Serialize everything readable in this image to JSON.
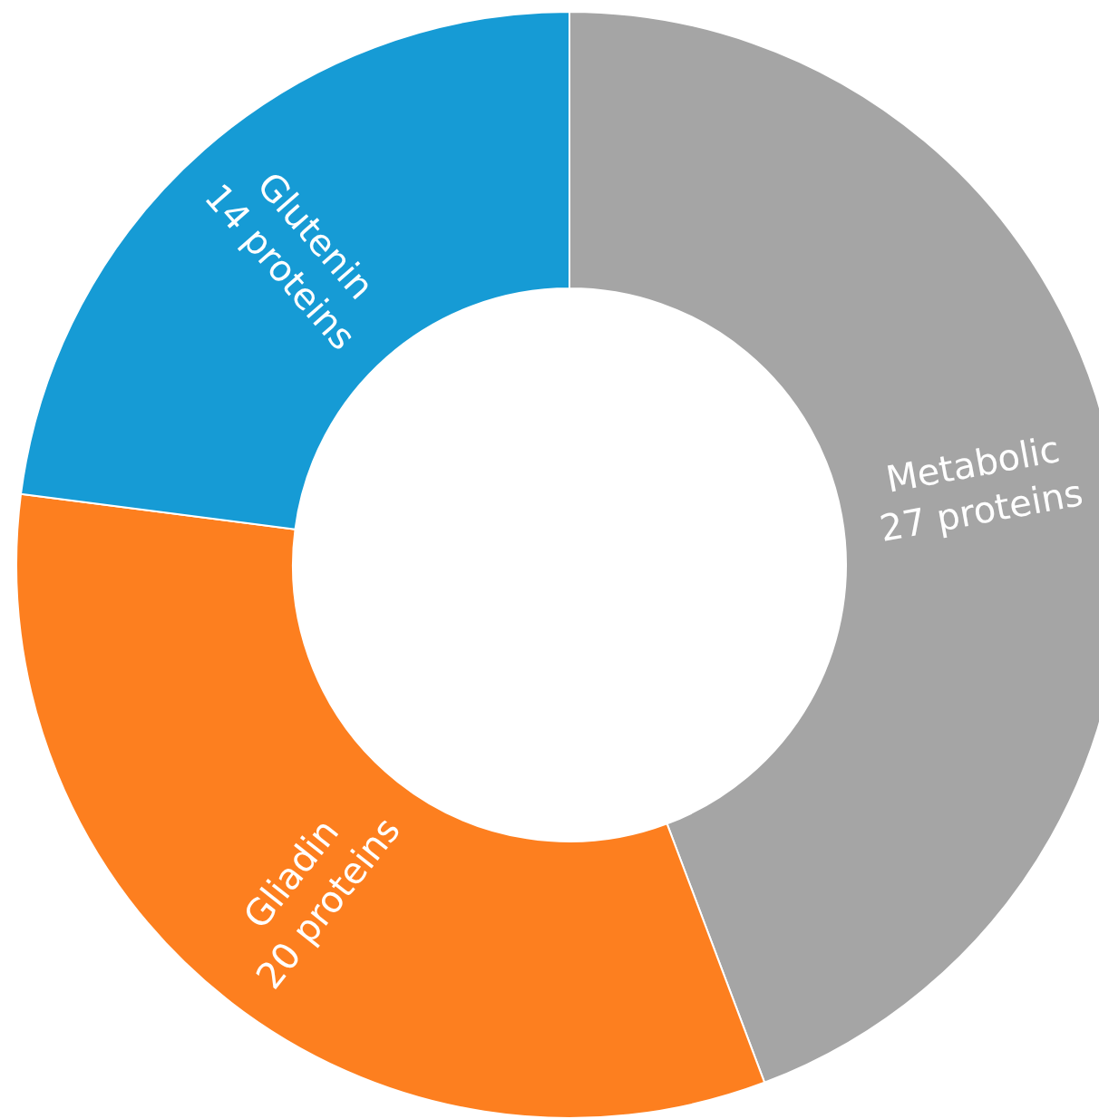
{
  "chart_data": {
    "type": "donut",
    "categories": [
      "Metabolic",
      "Gliadin",
      "Glutenin"
    ],
    "values": [
      27,
      20,
      14
    ],
    "colors": [
      "#a5a5a5",
      "#fd7f1f",
      "#169bd5"
    ],
    "value_labels": [
      "27 proteins",
      "20 proteins",
      "14 proteins"
    ],
    "legend": false
  }
}
